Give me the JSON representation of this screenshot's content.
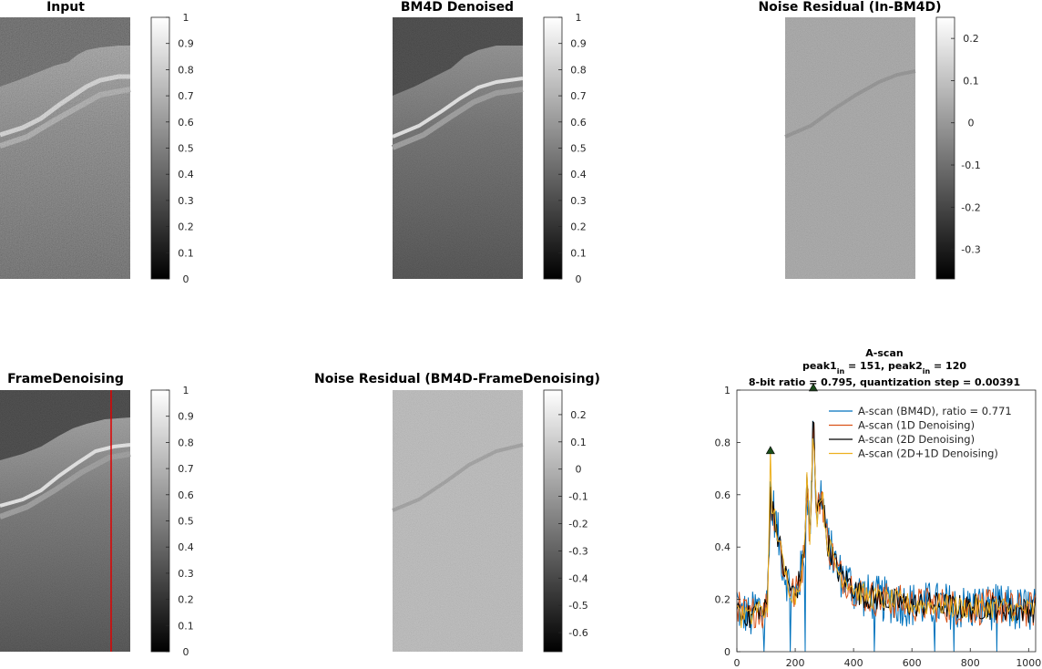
{
  "panels": [
    {
      "title": "Input",
      "colorbar_ticks": [
        "0",
        "0.1",
        "0.2",
        "0.3",
        "0.4",
        "0.5",
        "0.6",
        "0.7",
        "0.8",
        "0.9",
        "1"
      ]
    },
    {
      "title": "BM4D Denoised",
      "colorbar_ticks": [
        "0",
        "0.1",
        "0.2",
        "0.3",
        "0.4",
        "0.5",
        "0.6",
        "0.7",
        "0.8",
        "0.9",
        "1"
      ]
    },
    {
      "title": "Noise Residual (In-BM4D)",
      "colorbar_ticks": [
        "-0.3",
        "-0.2",
        "-0.1",
        "0",
        "0.1",
        "0.2"
      ]
    },
    {
      "title": "FrameDenoising",
      "colorbar_ticks": [
        "0",
        "0.1",
        "0.2",
        "0.3",
        "0.4",
        "0.5",
        "0.6",
        "0.7",
        "0.8",
        "0.9",
        "1"
      ]
    },
    {
      "title": "Noise Residual (BM4D-FrameDenoising)",
      "colorbar_ticks": [
        "-0.6",
        "-0.5",
        "-0.4",
        "-0.3",
        "-0.2",
        "-0.1",
        "0",
        "0.1",
        "0.2"
      ]
    }
  ],
  "ascan": {
    "title_line1": "A-scan",
    "title_line2": {
      "p1": "peak1",
      "sub1": "in",
      "v1": " = 151, ",
      "p2": "peak2",
      "sub2": "in",
      "v2": " = 120"
    },
    "title_line3": "8-bit ratio = 0.795, quantization step = 0.00391"
  },
  "chart_data": {
    "type": "line",
    "xlim": [
      0,
      1024
    ],
    "ylim": [
      0,
      1
    ],
    "xticks": [
      "0",
      "200",
      "400",
      "600",
      "800",
      "1000"
    ],
    "yticks": [
      "0",
      "0.2",
      "0.4",
      "0.6",
      "0.8",
      "1"
    ],
    "legend_position": "top-right",
    "series": [
      {
        "name": "A-scan (BM4D), ratio = 0.771",
        "color": "#0072BD"
      },
      {
        "name": "A-scan (1D Denoising)",
        "color": "#D95319"
      },
      {
        "name": "A-scan (2D Denoising)",
        "color": "#000000"
      },
      {
        "name": "A-scan (2D+1D Denoising)",
        "color": "#EDB120"
      }
    ],
    "peaks": [
      {
        "x": 115,
        "y": 0.76
      },
      {
        "x": 262,
        "y": 1.0
      }
    ],
    "profile_x": [
      0,
      15,
      30,
      45,
      60,
      75,
      90,
      105,
      112,
      115,
      118,
      125,
      140,
      160,
      180,
      200,
      215,
      230,
      240,
      250,
      256,
      262,
      268,
      275,
      290,
      310,
      330,
      350,
      370,
      390,
      410,
      450,
      500,
      550,
      600,
      650,
      700,
      750,
      800,
      850,
      900,
      950,
      1000,
      1024
    ],
    "profile_y": [
      0.2,
      0.13,
      0.15,
      0.12,
      0.16,
      0.17,
      0.14,
      0.19,
      0.5,
      0.74,
      0.5,
      0.55,
      0.45,
      0.32,
      0.25,
      0.21,
      0.28,
      0.36,
      0.65,
      0.45,
      0.6,
      0.97,
      0.65,
      0.52,
      0.62,
      0.42,
      0.36,
      0.3,
      0.28,
      0.26,
      0.23,
      0.21,
      0.2,
      0.19,
      0.18,
      0.18,
      0.18,
      0.17,
      0.17,
      0.17,
      0.17,
      0.16,
      0.16,
      0.16
    ]
  }
}
